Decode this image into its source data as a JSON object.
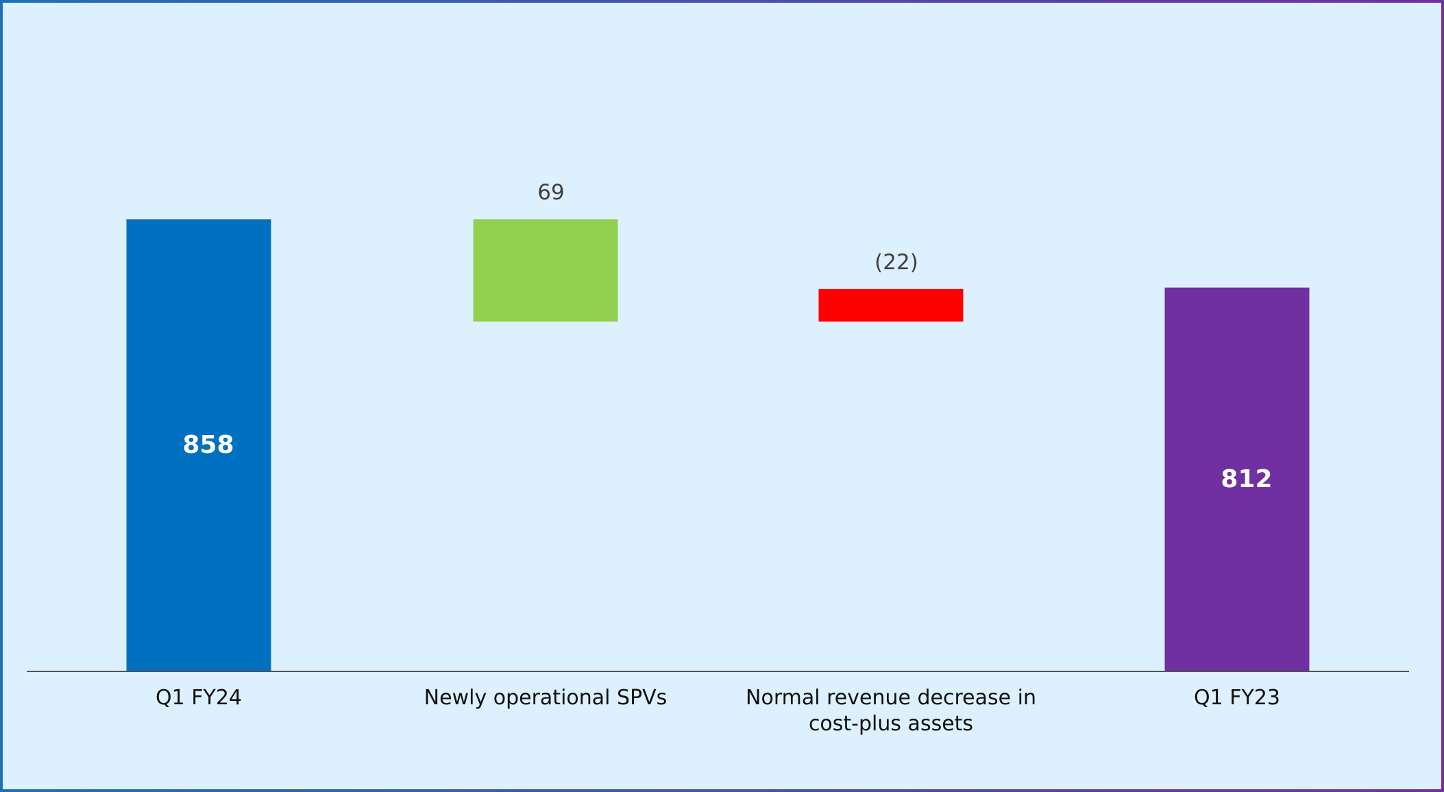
{
  "chart_data": {
    "type": "waterfall",
    "categories": [
      "Q1 FY24",
      "Newly operational SPVs",
      "Normal revenue decrease in cost-plus assets",
      "Q1 FY23"
    ],
    "values": [
      858,
      69,
      -22,
      812
    ],
    "value_labels": [
      "858",
      "69",
      "(22)",
      "812"
    ],
    "colors": [
      "#0070c0",
      "#92d050",
      "#ff0000",
      "#7030a0"
    ],
    "ylim": [
      553,
      1000
    ]
  }
}
